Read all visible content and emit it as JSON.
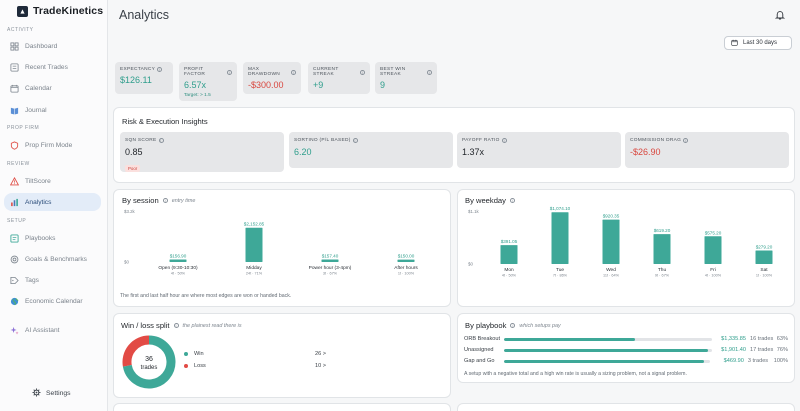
{
  "app": {
    "name": "TradeKinetics"
  },
  "sidebar": {
    "sections": {
      "activity": "ACTIVITY",
      "prop_firm": "PROP FIRM",
      "review": "REVIEW",
      "setup": "SETUP"
    },
    "items": [
      {
        "label": "Dashboard",
        "icon": "grid-icon"
      },
      {
        "label": "Recent Trades",
        "icon": "list-icon"
      },
      {
        "label": "Calendar",
        "icon": "calendar-icon"
      },
      {
        "label": "Journal",
        "icon": "book-icon"
      },
      {
        "label": "Prop Firm Mode",
        "icon": "shield-icon"
      },
      {
        "label": "TiltScore",
        "icon": "warning-icon"
      },
      {
        "label": "Analytics",
        "icon": "bar-chart-icon"
      },
      {
        "label": "Playbooks",
        "icon": "playbook-icon"
      },
      {
        "label": "Goals & Benchmarks",
        "icon": "target-icon"
      },
      {
        "label": "Tags",
        "icon": "tag-icon"
      },
      {
        "label": "Economic Calendar",
        "icon": "globe-icon"
      },
      {
        "label": "AI Assistant",
        "icon": "sparkle-icon"
      }
    ],
    "settings_label": "Settings"
  },
  "header": {
    "title": "Analytics",
    "date_range": "Last 30 days"
  },
  "stats": [
    {
      "label": "EXPECTANCY",
      "value": "$126.11",
      "color": "#2f9e8c"
    },
    {
      "label": "PROFIT FACTOR",
      "value": "6.57x",
      "sub": "Target: > 1.5",
      "color": "#2f9e8c"
    },
    {
      "label": "MAX DRAWDOWN",
      "value": "-$300.00",
      "color": "#d9473f"
    },
    {
      "label": "CURRENT STREAK",
      "value": "+9",
      "color": "#2f9e8c"
    },
    {
      "label": "BEST WIN STREAK",
      "value": "9",
      "color": "#2f9e8c"
    }
  ],
  "risk": {
    "title": "Risk & Execution Insights",
    "cards": [
      {
        "label": "SQN SCORE",
        "value": "0.85",
        "badge": "Poor"
      },
      {
        "label": "SORTINO (P/L BASED)",
        "value": "6.20"
      },
      {
        "label": "PAYOFF RATIO",
        "value": "1.37x"
      },
      {
        "label": "COMMISSION DRAG",
        "value": "-$26.90"
      }
    ]
  },
  "by_session": {
    "title": "By session",
    "subtitle": "entry time",
    "note": "The first and last half hour are where most edges are won or handed back."
  },
  "by_weekday": {
    "title": "By weekday"
  },
  "win_loss": {
    "title": "Win / loss split",
    "subtitle": "the plainest read there is",
    "center_value": "36",
    "center_label": "trades",
    "win_label": "Win",
    "loss_label": "Loss",
    "win_count": "26 >",
    "loss_count": "10 >",
    "win_color": "#3ea898",
    "loss_color": "#e24b45"
  },
  "by_playbook": {
    "title": "By playbook",
    "subtitle": "which setups pay",
    "rows": [
      {
        "name": "ORB Breakout",
        "fill": 0.63,
        "amount": "$1,335.85",
        "trades": "16 trades",
        "win": "63%"
      },
      {
        "name": "Unassigned",
        "fill": 0.98,
        "amount": "$1,901.40",
        "trades": "17 trades",
        "win": "76%"
      },
      {
        "name": "Gap and Go",
        "fill": 0.97,
        "amount": "$469.90",
        "trades": "3 trades",
        "win": "100%"
      }
    ],
    "note": "A setup with a negative total and a high win rate is usually a sizing problem, not a signal problem."
  },
  "chart_data": [
    {
      "type": "bar",
      "title": "By session",
      "ytick_labels": [
        "$3.2k",
        "$0"
      ],
      "ylim": [
        0,
        3200
      ],
      "categories": [
        "Open (9:30-10:30)",
        "Midday",
        "Power hour (3-4pm)",
        "After hours"
      ],
      "values": [
        156.9,
        2152.85,
        157.4,
        150
      ],
      "value_labels": [
        "$156.90",
        "$2,152.85",
        "$157.40",
        "$150.00"
      ],
      "sub_labels": [
        "4t · 50%",
        "24t · 71%",
        "3t · 67%",
        "1t · 100%"
      ],
      "color": "#3ea898"
    },
    {
      "type": "bar",
      "title": "By weekday",
      "ytick_labels": [
        "$1.1k",
        "$0"
      ],
      "ylim": [
        0,
        1100
      ],
      "categories": [
        "Mon",
        "Tue",
        "Wed",
        "Thu",
        "Fri",
        "Sat"
      ],
      "values": [
        391.05,
        1074.1,
        920.35,
        619.2,
        575.2,
        279.2
      ],
      "value_labels": [
        "$391.05",
        "$1,074.10",
        "$920.35",
        "$619.20",
        "$575.20",
        "$279.20"
      ],
      "sub_labels": [
        "4t · 50%",
        "7t · 86%",
        "11t · 64%",
        "9t · 67%",
        "4t · 100%",
        "1t · 100%"
      ],
      "color": "#3ea898"
    },
    {
      "type": "pie",
      "title": "Win / loss split",
      "categories": [
        "Win",
        "Loss"
      ],
      "values": [
        26,
        10
      ],
      "colors": [
        "#3ea898",
        "#e24b45"
      ]
    }
  ]
}
